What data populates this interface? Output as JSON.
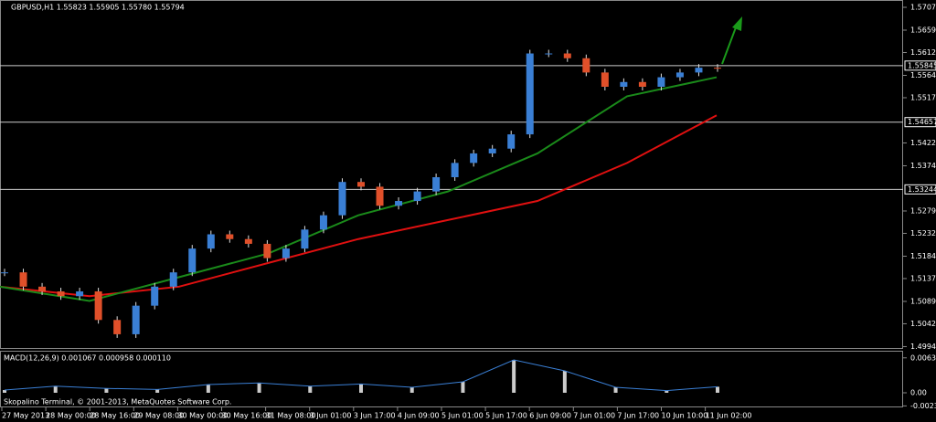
{
  "header": {
    "symbol": "GBPUSD,H1 1.55823 1.55905 1.55780 1.55794"
  },
  "price_axis": {
    "labels": [
      "1.57070",
      "1.56590",
      "1.56120",
      "1.55640",
      "1.55170",
      "1.54220",
      "1.53740",
      "1.52790",
      "1.52320",
      "1.51840",
      "1.51370",
      "1.50890",
      "1.50420",
      "1.49940"
    ],
    "values": [
      1.5707,
      1.5659,
      1.5612,
      1.5564,
      1.5517,
      1.5422,
      1.5374,
      1.5279,
      1.5232,
      1.5184,
      1.5137,
      1.5089,
      1.5042,
      1.4994
    ]
  },
  "levels": {
    "labels": [
      "1.55845",
      "1.54657",
      "1.53244"
    ],
    "values": [
      1.55845,
      1.54657,
      1.53244
    ]
  },
  "closes": [
    1.515,
    1.512,
    1.511,
    1.51,
    1.511,
    1.505,
    1.502,
    1.508,
    1.512,
    1.515,
    1.52,
    1.523,
    1.522,
    1.521,
    1.518,
    1.52,
    1.524,
    1.527,
    1.534,
    1.533,
    1.529,
    1.53,
    1.532,
    1.535,
    1.538,
    1.54,
    1.541,
    1.544,
    1.561,
    1.561,
    1.56,
    1.557,
    1.554,
    1.555,
    1.554,
    1.556,
    1.557,
    1.558,
    1.5579
  ],
  "ma_slow": [
    1.512,
    1.51,
    1.512,
    1.517,
    1.522,
    1.526,
    1.53,
    1.538,
    1.548
  ],
  "ma_fast": [
    1.512,
    1.509,
    1.514,
    1.519,
    1.527,
    1.532,
    1.54,
    1.552,
    1.556
  ],
  "macd": {
    "title": "MACD(12,26,9) 0.001067 0.000958 0.000110",
    "axis_labels": [
      "0.006371",
      "0.00",
      "-0.002397"
    ],
    "axis_values": [
      0.006371,
      0,
      -0.002397
    ],
    "line": [
      0.0005,
      0.0012,
      0.0008,
      0.0006,
      0.0015,
      0.0018,
      0.0012,
      0.0016,
      0.001,
      0.002,
      0.006,
      0.004,
      0.001,
      0.0004,
      0.0011
    ]
  },
  "time_axis": [
    "27 May 2013",
    "28 May 00:00",
    "28 May 16:00",
    "29 May 08:00",
    "30 May 00:00",
    "30 May 16:00",
    "31 May 08:00",
    "3 Jun 01:00",
    "3 Jun 17:00",
    "4 Jun 09:00",
    "5 Jun 01:00",
    "5 Jun 17:00",
    "6 Jun 09:00",
    "7 Jun 01:00",
    "7 Jun 17:00",
    "10 Jun 10:00",
    "11 Jun 02:00"
  ],
  "footer": "Skopalino Terminal, © 2001-2013, MetaQuotes Software Corp."
}
